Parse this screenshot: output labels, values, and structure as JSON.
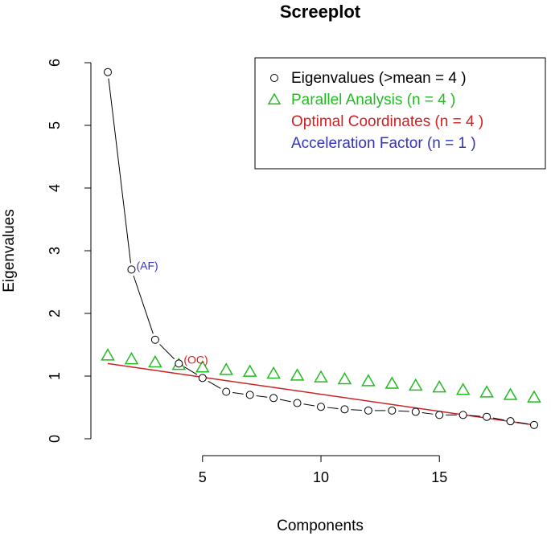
{
  "chart_data": {
    "type": "line",
    "title": "Screeplot",
    "xlabel": "Components",
    "ylabel": "Eigenvalues",
    "xlim": [
      1,
      19
    ],
    "ylim": [
      0,
      6
    ],
    "x_ticks": [
      5,
      10,
      15
    ],
    "y_ticks": [
      0,
      1,
      2,
      3,
      4,
      5,
      6
    ],
    "x": [
      1,
      2,
      3,
      4,
      5,
      6,
      7,
      8,
      9,
      10,
      11,
      12,
      13,
      14,
      15,
      16,
      17,
      18,
      19
    ],
    "series": [
      {
        "name": "Eigenvalues",
        "marker": "circle",
        "color": "#000000",
        "values": [
          5.85,
          2.7,
          1.58,
          1.2,
          0.97,
          0.75,
          0.7,
          0.65,
          0.57,
          0.51,
          0.47,
          0.45,
          0.45,
          0.43,
          0.38,
          0.38,
          0.35,
          0.28,
          0.22
        ]
      },
      {
        "name": "Parallel Analysis",
        "marker": "triangle",
        "color": "#22bb22",
        "values": [
          1.33,
          1.27,
          1.22,
          1.18,
          1.14,
          1.1,
          1.07,
          1.04,
          1.01,
          0.98,
          0.95,
          0.92,
          0.88,
          0.85,
          0.82,
          0.78,
          0.74,
          0.7,
          0.66
        ]
      }
    ],
    "optimal_coordinates_line": {
      "x": [
        1,
        19
      ],
      "y": [
        1.2,
        0.22
      ],
      "color": "#cc2222"
    },
    "annotations": [
      {
        "text": "(AF)",
        "x": 2,
        "y": 2.7,
        "color": "#3333bb"
      },
      {
        "text": "(OC)",
        "x": 4,
        "y": 1.2,
        "color": "#cc2222"
      }
    ],
    "legend": {
      "position": "top-right",
      "entries": [
        {
          "symbol": "circle",
          "text": "Eigenvalues (>mean  =  4 )",
          "color": "#000000"
        },
        {
          "symbol": "triangle",
          "text": "Parallel Analysis (n =  4 )",
          "color": "#22bb22"
        },
        {
          "symbol": "none",
          "text": "Optimal Coordinates (n =  4 )",
          "color": "#cc2222"
        },
        {
          "symbol": "none",
          "text": "Acceleration Factor (n =  1 )",
          "color": "#3333bb"
        }
      ]
    }
  }
}
